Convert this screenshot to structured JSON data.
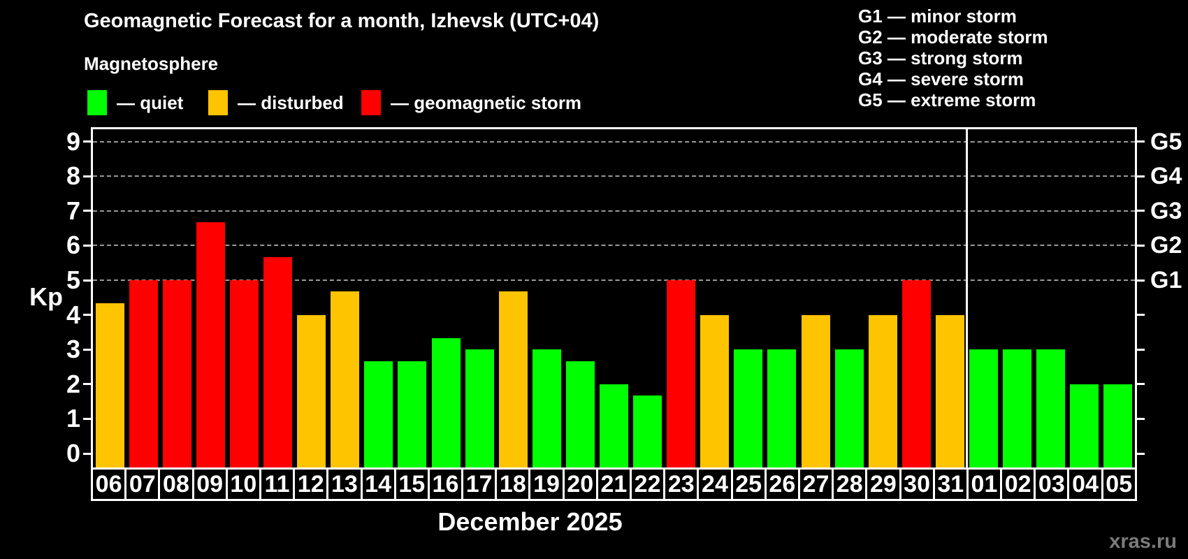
{
  "header": {
    "title": "Geomagnetic Forecast for a month, Izhevsk (UTC+04)",
    "subtitle": "Magnetosphere",
    "watermark": "xras.ru"
  },
  "legend": {
    "items": [
      {
        "key": "quiet",
        "label": "— quiet",
        "color": "#00ff00"
      },
      {
        "key": "disturbed",
        "label": "— disturbed",
        "color": "#ffc400"
      },
      {
        "key": "storm",
        "label": "— geomagnetic storm",
        "color": "#ff0000"
      }
    ]
  },
  "g_legend": {
    "items": [
      "G1 — minor storm",
      "G2 — moderate storm",
      "G3 — strong storm",
      "G4 — severe storm",
      "G5 — extreme storm"
    ]
  },
  "chart_data": {
    "type": "bar",
    "title": "Geomagnetic Forecast for a month, Izhevsk (UTC+04)",
    "subtitle": "Magnetosphere",
    "ylabel": "Kp",
    "xlabel": "December 2025",
    "ylim": [
      0,
      9
    ],
    "yticks": [
      0,
      1,
      2,
      3,
      4,
      5,
      6,
      7,
      8,
      9
    ],
    "gridline_levels": [
      5,
      6,
      7,
      8,
      9
    ],
    "grid": "dashed-horizontal-at-storm-levels",
    "legend_position": "top",
    "right_axis": [
      {
        "kp": 5,
        "label": "G1"
      },
      {
        "kp": 6,
        "label": "G2"
      },
      {
        "kp": 7,
        "label": "G3"
      },
      {
        "kp": 8,
        "label": "G4"
      },
      {
        "kp": 9,
        "label": "G5"
      }
    ],
    "level_colors": {
      "quiet": "#00ff00",
      "disturbed": "#ffc400",
      "storm": "#ff0000"
    },
    "month_boundary_after": "31",
    "categories": [
      "06",
      "07",
      "08",
      "09",
      "10",
      "11",
      "12",
      "13",
      "14",
      "15",
      "16",
      "17",
      "18",
      "19",
      "20",
      "21",
      "22",
      "23",
      "24",
      "25",
      "26",
      "27",
      "28",
      "29",
      "30",
      "31",
      "01",
      "02",
      "03",
      "04",
      "05"
    ],
    "days": [
      {
        "day": "06",
        "kp": 4.33,
        "level": "disturbed"
      },
      {
        "day": "07",
        "kp": 5.0,
        "level": "storm"
      },
      {
        "day": "08",
        "kp": 5.0,
        "level": "storm"
      },
      {
        "day": "09",
        "kp": 6.67,
        "level": "storm"
      },
      {
        "day": "10",
        "kp": 5.0,
        "level": "storm"
      },
      {
        "day": "11",
        "kp": 5.67,
        "level": "storm"
      },
      {
        "day": "12",
        "kp": 4.0,
        "level": "disturbed"
      },
      {
        "day": "13",
        "kp": 4.67,
        "level": "disturbed"
      },
      {
        "day": "14",
        "kp": 2.67,
        "level": "quiet"
      },
      {
        "day": "15",
        "kp": 2.67,
        "level": "quiet"
      },
      {
        "day": "16",
        "kp": 3.33,
        "level": "quiet"
      },
      {
        "day": "17",
        "kp": 3.0,
        "level": "quiet"
      },
      {
        "day": "18",
        "kp": 4.67,
        "level": "disturbed"
      },
      {
        "day": "19",
        "kp": 3.0,
        "level": "quiet"
      },
      {
        "day": "20",
        "kp": 2.67,
        "level": "quiet"
      },
      {
        "day": "21",
        "kp": 2.0,
        "level": "quiet"
      },
      {
        "day": "22",
        "kp": 1.67,
        "level": "quiet"
      },
      {
        "day": "23",
        "kp": 5.0,
        "level": "storm"
      },
      {
        "day": "24",
        "kp": 4.0,
        "level": "disturbed"
      },
      {
        "day": "25",
        "kp": 3.0,
        "level": "quiet"
      },
      {
        "day": "26",
        "kp": 3.0,
        "level": "quiet"
      },
      {
        "day": "27",
        "kp": 4.0,
        "level": "disturbed"
      },
      {
        "day": "28",
        "kp": 3.0,
        "level": "quiet"
      },
      {
        "day": "29",
        "kp": 4.0,
        "level": "disturbed"
      },
      {
        "day": "30",
        "kp": 5.0,
        "level": "storm"
      },
      {
        "day": "31",
        "kp": 4.0,
        "level": "disturbed"
      },
      {
        "day": "01",
        "kp": 3.0,
        "level": "quiet"
      },
      {
        "day": "02",
        "kp": 3.0,
        "level": "quiet"
      },
      {
        "day": "03",
        "kp": 3.0,
        "level": "quiet"
      },
      {
        "day": "04",
        "kp": 2.0,
        "level": "quiet"
      },
      {
        "day": "05",
        "kp": 2.0,
        "level": "quiet"
      }
    ]
  }
}
